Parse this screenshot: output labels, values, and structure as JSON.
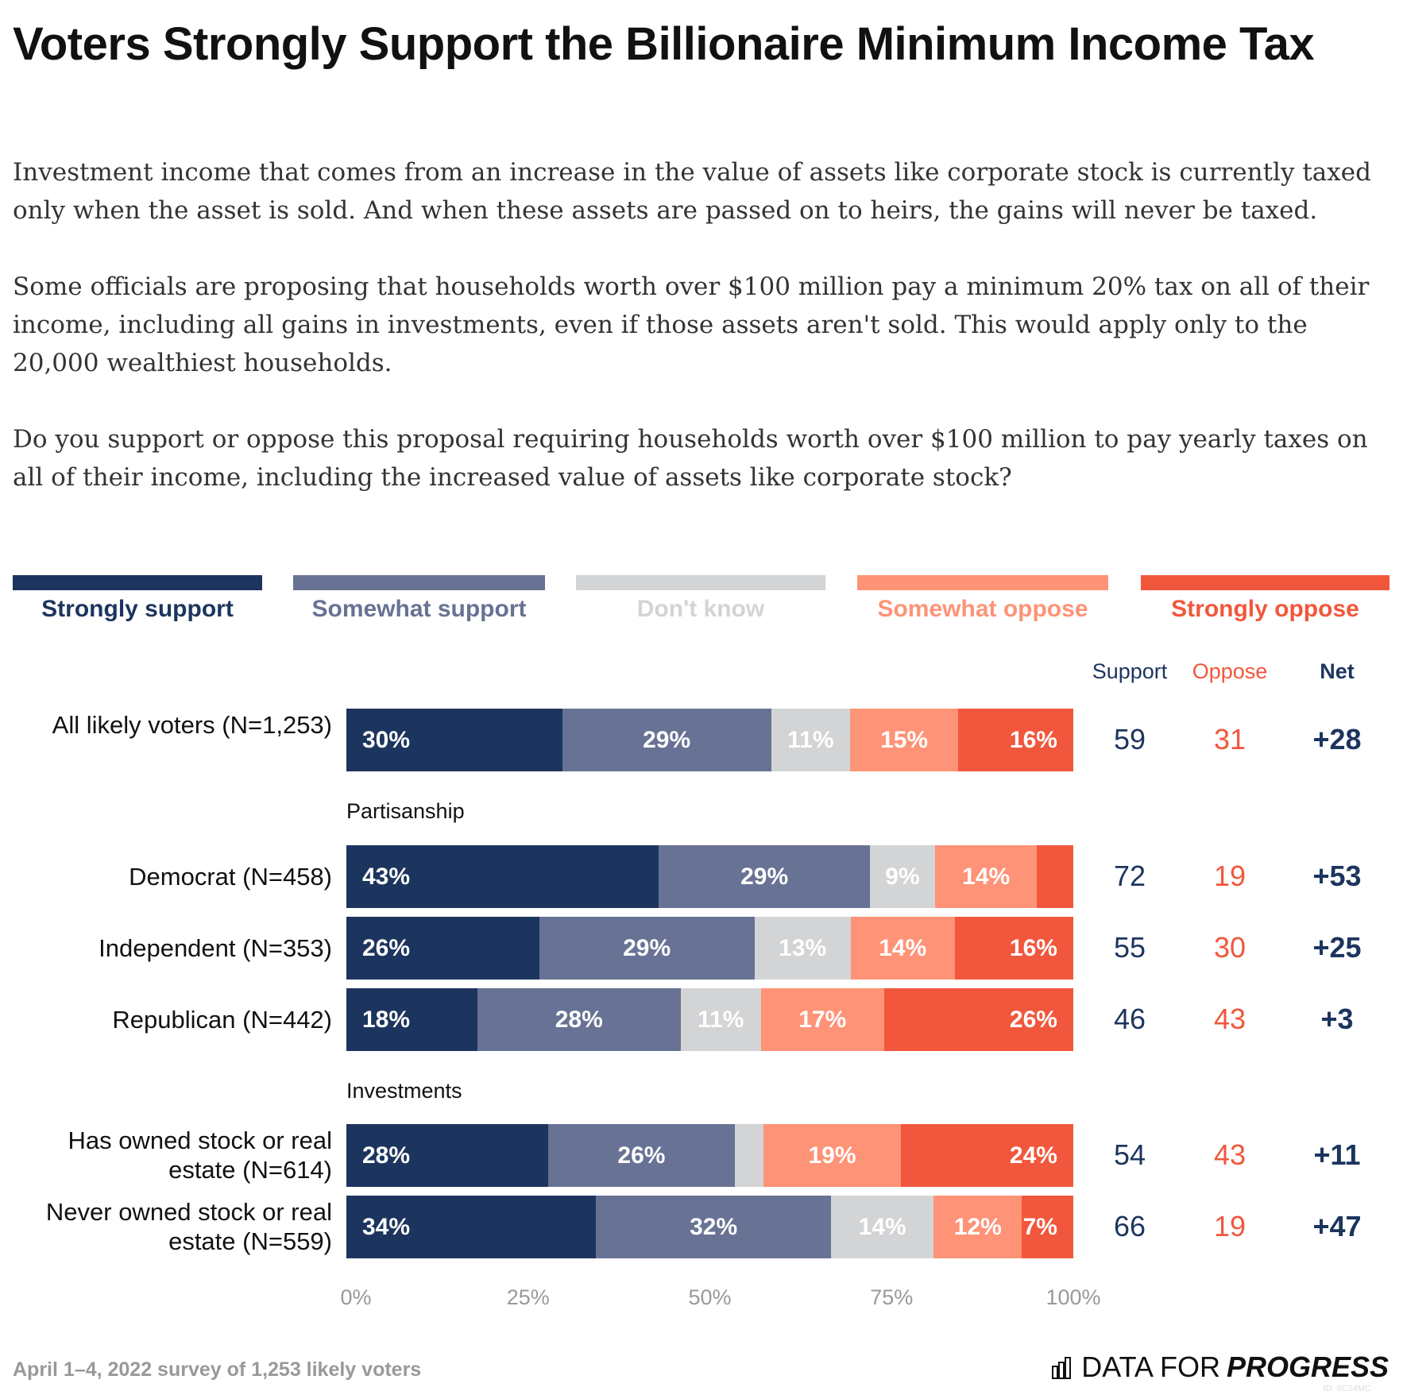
{
  "title": "Voters Strongly Support the Billionaire Minimum Income Tax",
  "paragraphs": [
    "Investment income that comes from an increase in the value of assets like corporate stock is currently taxed only when the asset is sold. And when these assets are passed on to heirs, the gains will never be taxed.",
    "Some officials are proposing that households worth over $100 million pay a minimum 20% tax on all of their income, including all gains in investments, even if those assets aren't sold. This would apply only to the 20,000 wealthiest households.",
    "Do you support or oppose this proposal requiring households worth over $100 million to pay yearly taxes on all of their income, including the increased value of assets like corporate stock?"
  ],
  "colors": {
    "strongly_support": "#1c355e",
    "somewhat_support": "#687294",
    "dont_know": "#d3d4d6",
    "somewhat_oppose": "#fe9377",
    "strongly_oppose": "#f1573c"
  },
  "chart_data": {
    "type": "bar",
    "orientation": "horizontal-stacked-100",
    "legend_position": "top",
    "series": [
      {
        "name": "Strongly support"
      },
      {
        "name": "Somewhat support"
      },
      {
        "name": "Don't know"
      },
      {
        "name": "Somewhat oppose"
      },
      {
        "name": "Strongly oppose"
      }
    ],
    "column_headers": {
      "support": "Support",
      "oppose": "Oppose",
      "net": "Net"
    },
    "sections": [
      "Partisanship",
      "Investments"
    ],
    "rows": [
      {
        "label": "All likely voters (N=1,253)",
        "values": [
          30,
          29,
          11,
          15,
          16
        ],
        "labels": [
          "30%",
          "29%",
          "11%",
          "15%",
          "16%"
        ],
        "support": "59",
        "oppose": "31",
        "net": "+28"
      },
      {
        "label": "Democrat (N=458)",
        "values": [
          43,
          29,
          9,
          14,
          5
        ],
        "labels": [
          "43%",
          "29%",
          "9%",
          "14%",
          ""
        ],
        "support": "72",
        "oppose": "19",
        "net": "+53"
      },
      {
        "label": "Independent (N=353)",
        "values": [
          26,
          29,
          13,
          14,
          16
        ],
        "labels": [
          "26%",
          "29%",
          "13%",
          "14%",
          "16%"
        ],
        "support": "55",
        "oppose": "30",
        "net": "+25"
      },
      {
        "label": "Republican (N=442)",
        "values": [
          18,
          28,
          11,
          17,
          26
        ],
        "labels": [
          "18%",
          "28%",
          "11%",
          "17%",
          "26%"
        ],
        "support": "46",
        "oppose": "43",
        "net": "+3"
      },
      {
        "label": "Has owned stock or real estate (N=614)",
        "values": [
          28,
          26,
          4,
          19,
          24
        ],
        "labels": [
          "28%",
          "26%",
          "",
          "19%",
          "24%"
        ],
        "support": "54",
        "oppose": "43",
        "net": "+11"
      },
      {
        "label": "Never owned stock or real estate (N=559)",
        "values": [
          34,
          32,
          14,
          12,
          7
        ],
        "labels": [
          "34%",
          "32%",
          "14%",
          "12%",
          "7%"
        ],
        "support": "66",
        "oppose": "19",
        "net": "+47"
      }
    ],
    "xlim": [
      0,
      100
    ],
    "x_ticks": [
      "0%",
      "25%",
      "50%",
      "75%",
      "100%"
    ]
  },
  "footer": "April 1–4, 2022 survey of 1,253 likely voters",
  "logo": {
    "text_light": "DATA FOR",
    "text_bold": "PROGRESS",
    "id": "ID: 6C24MC"
  }
}
